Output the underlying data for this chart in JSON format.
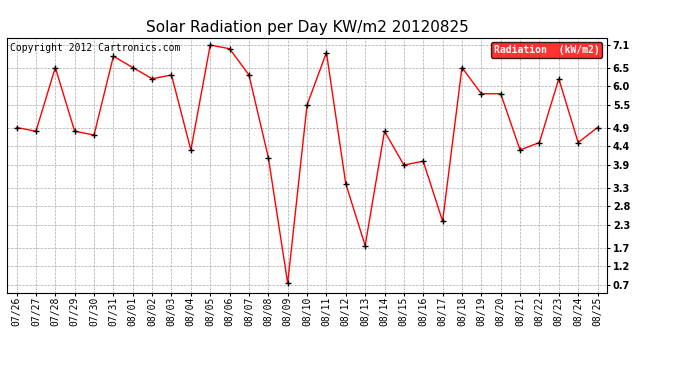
{
  "title": "Solar Radiation per Day KW/m2 20120825",
  "copyright_text": "Copyright 2012 Cartronics.com",
  "legend_label": "Radiation  (kW/m2)",
  "dates": [
    "07/26",
    "07/27",
    "07/28",
    "07/29",
    "07/30",
    "07/31",
    "08/01",
    "08/02",
    "08/03",
    "08/04",
    "08/05",
    "08/06",
    "08/07",
    "08/08",
    "08/09",
    "08/10",
    "08/11",
    "08/12",
    "08/13",
    "08/14",
    "08/15",
    "08/16",
    "08/17",
    "08/18",
    "08/19",
    "08/20",
    "08/21",
    "08/22",
    "08/23",
    "08/24",
    "08/25"
  ],
  "values": [
    4.9,
    4.8,
    6.5,
    4.8,
    4.7,
    6.8,
    6.5,
    6.2,
    6.3,
    4.3,
    7.1,
    7.0,
    6.3,
    4.1,
    0.75,
    5.5,
    6.9,
    3.4,
    1.75,
    4.8,
    3.9,
    4.0,
    2.4,
    6.5,
    5.8,
    5.8,
    4.3,
    4.5,
    6.2,
    4.5,
    4.9
  ],
  "yticks": [
    0.7,
    1.2,
    1.7,
    2.3,
    2.8,
    3.3,
    3.9,
    4.4,
    4.9,
    5.5,
    6.0,
    6.5,
    7.1
  ],
  "ylim": [
    0.5,
    7.3
  ],
  "line_color": "red",
  "marker_color": "black",
  "bg_color": "white",
  "grid_color": "#aaaaaa",
  "legend_bg": "red",
  "legend_text_color": "white",
  "title_fontsize": 11,
  "tick_fontsize": 7,
  "copyright_fontsize": 7
}
